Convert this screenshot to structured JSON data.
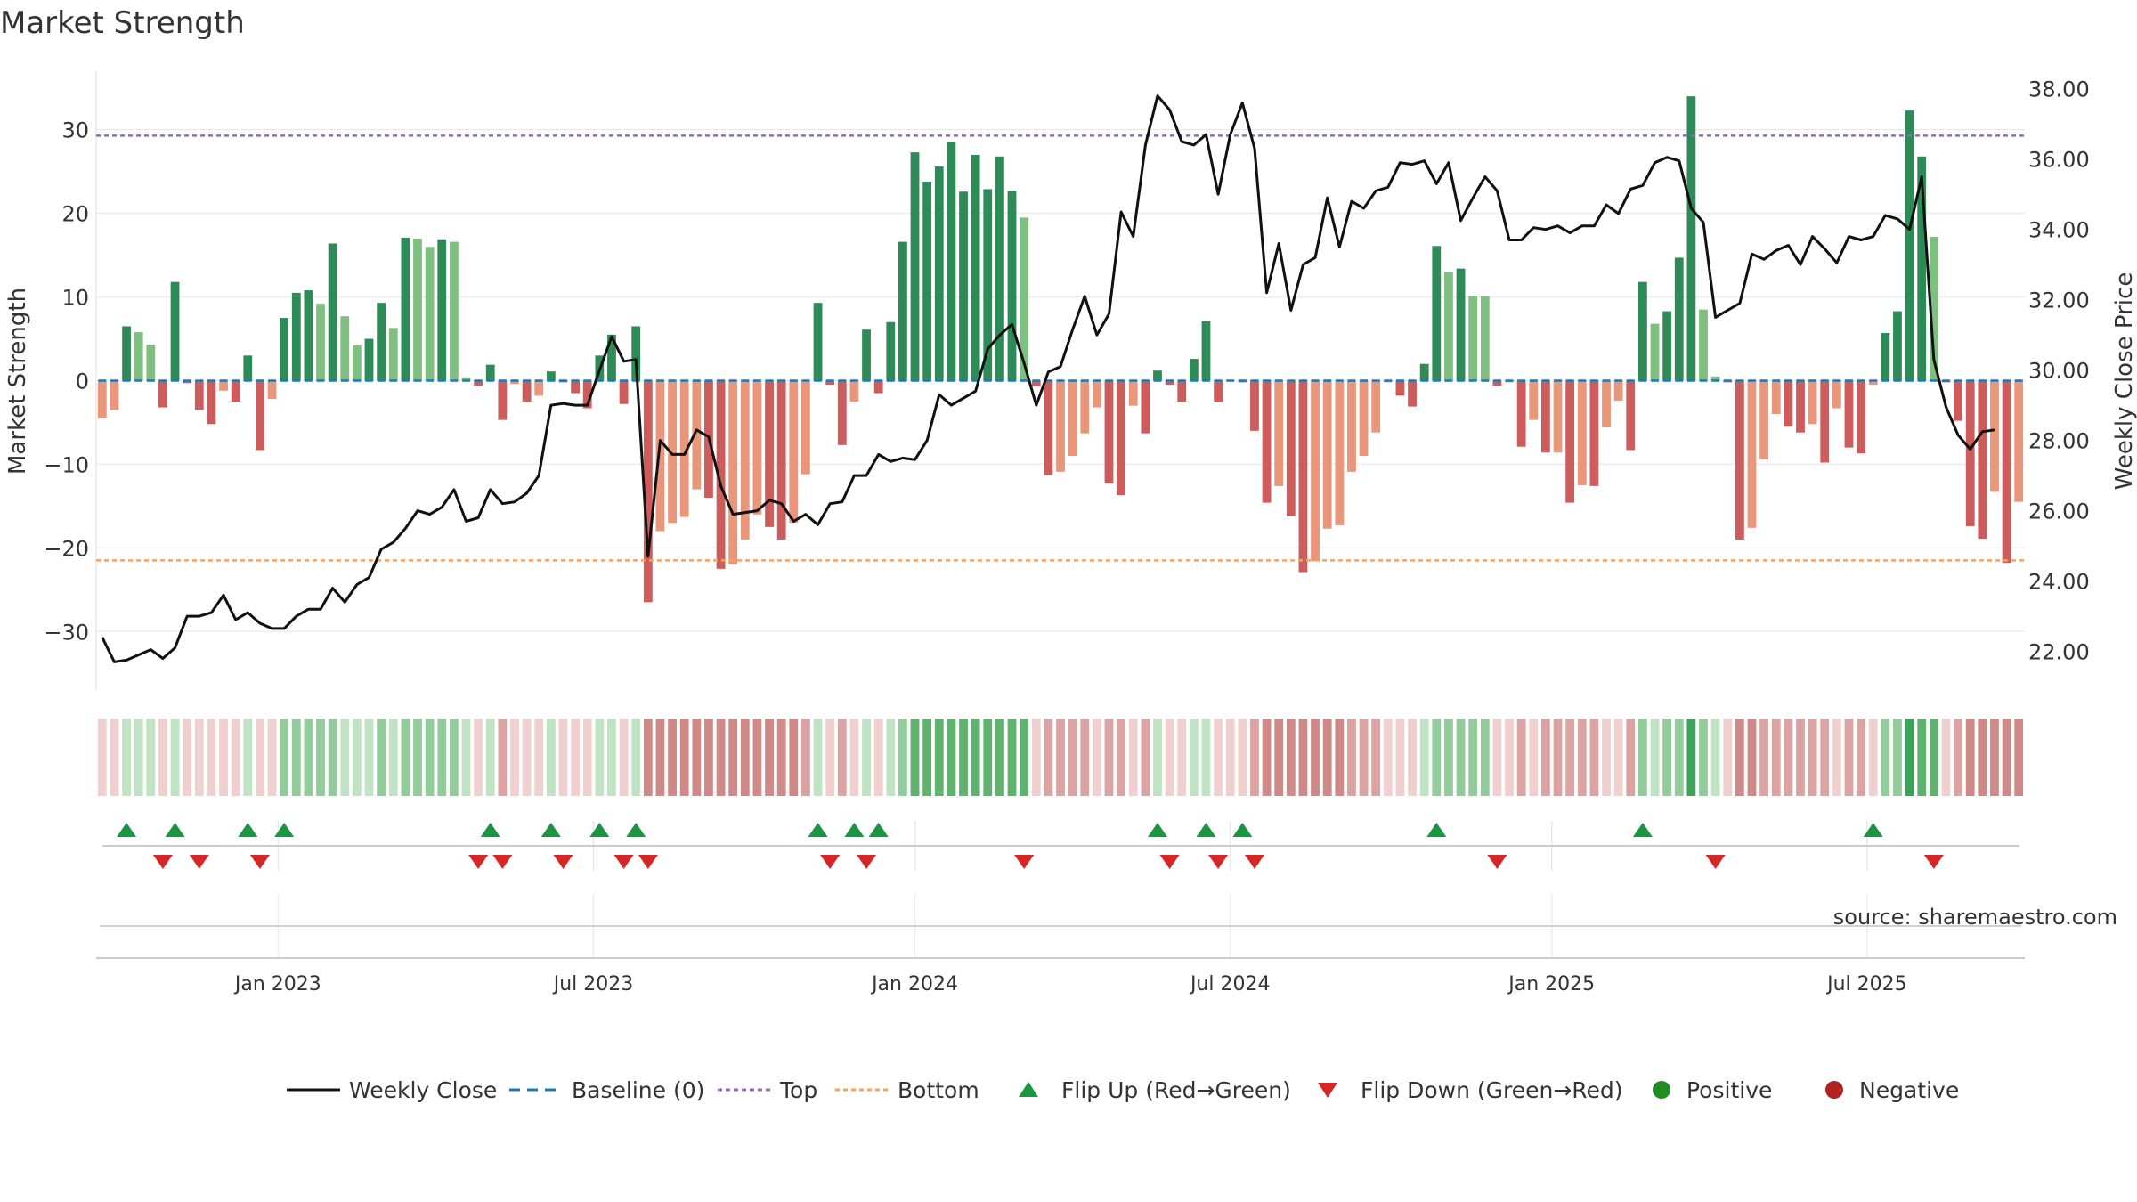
{
  "title": "Market Strength",
  "source": "source: sharemaestro.com",
  "colors": {
    "strong_green": "#2e8b57",
    "light_green": "#7fbf7f",
    "strong_red": "#cd5c5c",
    "light_red": "#e9967a",
    "close_line": "#111111",
    "baseline": "#1f77b4",
    "top": "#9467bd",
    "bottom": "#f4a460",
    "flip_up": "#1a9641",
    "flip_down": "#d62728",
    "positive": "#228b22",
    "negative": "#b22222"
  },
  "legend": [
    {
      "key": "close",
      "label": "Weekly Close"
    },
    {
      "key": "baseline",
      "label": "Baseline (0)"
    },
    {
      "key": "top",
      "label": "Top"
    },
    {
      "key": "bottom",
      "label": "Bottom"
    },
    {
      "key": "flip_up",
      "label": "Flip Up (Red→Green)"
    },
    {
      "key": "flip_down",
      "label": "Flip Down (Green→Red)"
    },
    {
      "key": "positive",
      "label": "Positive"
    },
    {
      "key": "negative",
      "label": "Negative"
    }
  ],
  "chart_data": {
    "type": "bar+line",
    "ylabel_left": "Market Strength",
    "ylabel_right": "Weekly Close Price",
    "left_ylim": [
      -37,
      37
    ],
    "right_ylim": [
      20.9,
      38.5
    ],
    "left_ticks": [
      30,
      20,
      10,
      0,
      -10,
      -20,
      -30
    ],
    "left_tick_labels": [
      "30",
      "20",
      "10",
      "0",
      "−10",
      "−20",
      "−30"
    ],
    "right_ticks": [
      38,
      36,
      34,
      32,
      30,
      28,
      26,
      24,
      22
    ],
    "right_tick_labels": [
      "38.00",
      "36.00",
      "34.00",
      "32.00",
      "30.00",
      "28.00",
      "26.00",
      "24.00",
      "22.00"
    ],
    "x_tick_index": [
      15,
      41,
      67.5,
      93.5,
      120,
      146
    ],
    "x_tick_labels": [
      "Jan 2023",
      "Jul 2023",
      "Jan 2024",
      "Jul 2024",
      "Jan 2025",
      "Jul 2025"
    ],
    "top_line": 29.3,
    "bottom_line": -21.5,
    "strength": [
      -4.5,
      -3.5,
      6.5,
      5.8,
      4.3,
      -3.2,
      11.8,
      -0.3,
      -3.5,
      -5.2,
      -1.2,
      -2.5,
      3.0,
      -8.3,
      -2.2,
      7.5,
      10.5,
      10.8,
      9.2,
      16.4,
      7.7,
      4.2,
      5.0,
      9.3,
      6.3,
      17.1,
      17.0,
      16.0,
      16.9,
      16.6,
      0.4,
      -0.6,
      1.9,
      -4.7,
      -0.4,
      -2.5,
      -1.8,
      1.1,
      -0.2,
      -1.5,
      -3.3,
      3.0,
      5.5,
      -2.8,
      6.5,
      -26.5,
      -18.0,
      -17.0,
      -16.3,
      -13.0,
      -14.0,
      -22.5,
      -22.0,
      -19.0,
      -16.0,
      -17.5,
      -19.0,
      -17.0,
      -11.2,
      9.3,
      -0.5,
      -7.7,
      -2.5,
      6.1,
      -1.5,
      7.0,
      16.6,
      27.3,
      23.8,
      25.6,
      28.5,
      22.6,
      27.0,
      22.9,
      26.8,
      22.7,
      19.5,
      -0.7,
      -11.3,
      -10.9,
      -9.0,
      -6.3,
      -3.2,
      -12.3,
      -13.7,
      -3.0,
      -6.3,
      1.2,
      -0.5,
      -2.5,
      2.6,
      7.1,
      -2.6,
      -0.1,
      -0.2,
      -6.0,
      -14.6,
      -12.6,
      -16.2,
      -22.9,
      -21.6,
      -17.7,
      -17.3,
      -10.9,
      -9.0,
      -6.2,
      -0.2,
      -1.8,
      -3.1,
      2.0,
      16.1,
      13.0,
      13.4,
      10.1,
      10.1,
      -0.6,
      -0.2,
      -7.9,
      -4.7,
      -8.6,
      -8.6,
      -14.6,
      -12.5,
      -12.6,
      -5.6,
      -2.4,
      -8.3,
      11.8,
      6.8,
      8.3,
      14.7,
      34.0,
      8.5,
      0.5,
      -0.2,
      -19.0,
      -17.6,
      -9.4,
      -4.0,
      -5.5,
      -6.2,
      -5.2,
      -9.8,
      -3.3,
      -8.0,
      -8.7,
      -0.5,
      5.7,
      8.3,
      32.3,
      26.8,
      17.2,
      -0.2,
      -4.8,
      -17.4,
      -18.9,
      -13.3,
      -21.8,
      -14.5
    ],
    "close": [
      22.4,
      21.7,
      21.75,
      21.9,
      22.05,
      21.8,
      22.1,
      23.0,
      23.0,
      23.1,
      23.6,
      22.9,
      23.1,
      22.8,
      22.65,
      22.65,
      23.0,
      23.2,
      23.2,
      23.8,
      23.4,
      23.9,
      24.1,
      24.9,
      25.1,
      25.5,
      26.0,
      25.9,
      26.1,
      26.6,
      25.7,
      25.8,
      26.6,
      26.2,
      26.25,
      26.5,
      27.0,
      29.0,
      29.05,
      29.0,
      29.0,
      30.0,
      30.95,
      30.25,
      30.3,
      24.7,
      28.0,
      27.6,
      27.6,
      28.3,
      28.1,
      26.7,
      25.9,
      25.95,
      26.0,
      26.3,
      26.2,
      25.7,
      25.9,
      25.6,
      26.2,
      26.25,
      27.0,
      27.0,
      27.6,
      27.4,
      27.5,
      27.45,
      28.0,
      29.3,
      29.0,
      29.2,
      29.4,
      30.6,
      31.0,
      31.3,
      30.2,
      29.0,
      29.95,
      30.1,
      31.15,
      32.1,
      31.0,
      31.6,
      34.5,
      33.8,
      36.4,
      37.8,
      37.4,
      36.5,
      36.4,
      36.7,
      35.0,
      36.7,
      37.6,
      36.3,
      32.2,
      33.6,
      31.7,
      33.0,
      33.2,
      34.9,
      33.5,
      34.8,
      34.6,
      35.1,
      35.2,
      35.9,
      35.85,
      35.95,
      35.3,
      35.9,
      34.25,
      34.9,
      35.5,
      35.1,
      33.7,
      33.7,
      34.05,
      34.0,
      34.1,
      33.9,
      34.1,
      34.1,
      34.7,
      34.45,
      35.15,
      35.25,
      35.9,
      36.05,
      35.95,
      34.6,
      34.2,
      31.5,
      31.7,
      31.9,
      33.3,
      33.15,
      33.4,
      33.55,
      33.0,
      33.8,
      33.45,
      33.05,
      33.8,
      33.7,
      33.8,
      34.4,
      34.3,
      34.0,
      35.5,
      30.3,
      28.95,
      28.15,
      27.75,
      28.25,
      28.3
    ],
    "regime_band": [
      -1,
      -1,
      1,
      1,
      1,
      -1,
      1,
      -1,
      -1,
      -1,
      -1,
      -1,
      1,
      -1,
      -1,
      2,
      2,
      2,
      2,
      2,
      1,
      1,
      1,
      2,
      1,
      2,
      2,
      2,
      2,
      2,
      1,
      -1,
      1,
      -2,
      -1,
      -1,
      -1,
      1,
      -1,
      -1,
      -1,
      1,
      1,
      -1,
      1,
      -3,
      -3,
      -3,
      -3,
      -3,
      -3,
      -3,
      -3,
      -3,
      -3,
      -3,
      -3,
      -3,
      -2,
      1,
      -1,
      -2,
      -1,
      1,
      -1,
      1,
      2,
      3,
      3,
      3,
      3,
      3,
      3,
      3,
      3,
      3,
      3,
      -1,
      -2,
      -2,
      -2,
      -2,
      -1,
      -2,
      -2,
      -1,
      -2,
      1,
      -1,
      -1,
      1,
      1,
      -1,
      -1,
      -1,
      -2,
      -3,
      -3,
      -3,
      -3,
      -3,
      -3,
      -3,
      -2,
      -2,
      -2,
      -1,
      -1,
      -1,
      1,
      2,
      2,
      2,
      2,
      2,
      -1,
      -1,
      -2,
      -1,
      -2,
      -2,
      -2,
      -2,
      -2,
      -1,
      -1,
      -2,
      2,
      1,
      2,
      2,
      4,
      2,
      1,
      -1,
      -3,
      -3,
      -2,
      -2,
      -2,
      -2,
      -2,
      -2,
      -1,
      -2,
      -2,
      -1,
      2,
      2,
      4,
      3,
      3,
      -1,
      -2,
      -3,
      -3,
      -3,
      -3,
      -3
    ],
    "flip_up_index": [
      2,
      6,
      12,
      15,
      32,
      37,
      41,
      44,
      59,
      62,
      64,
      87,
      91,
      94,
      110,
      127,
      146
    ],
    "flip_down_index": [
      5,
      8,
      13,
      31,
      33,
      38,
      43,
      45,
      60,
      63,
      76,
      88,
      92,
      95,
      115,
      133,
      151
    ]
  }
}
